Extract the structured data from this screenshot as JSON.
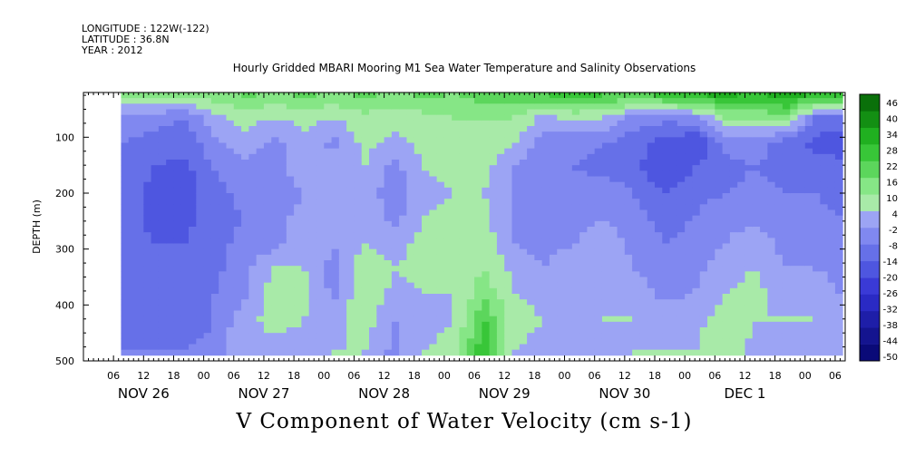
{
  "header": {
    "longitude": "LONGITUDE : 122W(-122)",
    "latitude": "LATITUDE : 36.8N",
    "year": "YEAR : 2012"
  },
  "title": "Hourly Gridded MBARI Mooring M1 Sea Water Temperature and Salinity Observations",
  "bottom_title": "V Component of Water Velocity (cm s-1)",
  "chart_data": {
    "type": "heatmap",
    "title": "Hourly Gridded MBARI Mooring M1 Sea Water Temperature and Salinity Observations",
    "variable": "V Component of Water Velocity (cm s-1)",
    "ylabel": "DEPTH (m)",
    "ylim": [
      500,
      20
    ],
    "y_reversed": true,
    "y_ticks": [
      100,
      200,
      300,
      400,
      500
    ],
    "x_hour_ticks": [
      "06",
      "12",
      "18",
      "00",
      "06",
      "12",
      "18",
      "00",
      "06",
      "12",
      "18",
      "00",
      "06",
      "12",
      "18",
      "00",
      "06",
      "12",
      "18",
      "00",
      "06",
      "12",
      "18",
      "00",
      "06"
    ],
    "x_day_labels": [
      "NOV 26",
      "NOV 27",
      "NOV 28",
      "NOV 29",
      "NOV 30",
      "DEC  1"
    ],
    "x_range_hours": [
      0,
      152
    ],
    "data_start_hour": 7.5,
    "data_end_hour": 151,
    "colorbar": {
      "levels": [
        -50,
        -44,
        -38,
        -32,
        -26,
        -20,
        -14,
        -8,
        -2,
        4,
        10,
        16,
        22,
        28,
        34,
        40,
        46
      ],
      "labels": [
        "46",
        "40",
        "34",
        "28",
        "22",
        "16",
        "10",
        "4",
        "-2",
        "-8",
        "-14",
        "-20",
        "-26",
        "-32",
        "-38",
        "-44",
        "-50"
      ]
    },
    "profiles": [
      {
        "hour": 8,
        "v": [
          12,
          -4,
          -8,
          -10,
          -10,
          -10,
          -10,
          -10,
          -10,
          -10,
          -8
        ]
      },
      {
        "hour": 14,
        "v": [
          16,
          -6,
          -10,
          -14,
          -16,
          -16,
          -14,
          -12,
          -12,
          -10,
          -8
        ]
      },
      {
        "hour": 20,
        "v": [
          14,
          -8,
          -12,
          -16,
          -18,
          -16,
          -14,
          -14,
          -12,
          -12,
          -8
        ]
      },
      {
        "hour": 26,
        "v": [
          14,
          2,
          -4,
          -8,
          -10,
          -12,
          -10,
          -10,
          -8,
          -8,
          -6
        ]
      },
      {
        "hour": 32,
        "v": [
          18,
          6,
          2,
          -4,
          -6,
          -8,
          -6,
          -4,
          -4,
          2,
          4
        ]
      },
      {
        "hour": 38,
        "v": [
          16,
          4,
          -4,
          -6,
          -8,
          -6,
          -4,
          4,
          8,
          6,
          2
        ]
      },
      {
        "hour": 44,
        "v": [
          18,
          6,
          2,
          4,
          -2,
          2,
          2,
          4,
          6,
          4,
          2
        ]
      },
      {
        "hour": 50,
        "v": [
          16,
          4,
          -4,
          2,
          4,
          4,
          -2,
          -4,
          -4,
          2,
          4
        ]
      },
      {
        "hour": 56,
        "v": [
          18,
          8,
          6,
          4,
          2,
          2,
          4,
          8,
          10,
          8,
          4
        ]
      },
      {
        "hour": 62,
        "v": [
          16,
          6,
          2,
          -4,
          -6,
          -4,
          2,
          4,
          2,
          -2,
          -4
        ]
      },
      {
        "hour": 68,
        "v": [
          18,
          8,
          6,
          4,
          2,
          4,
          6,
          6,
          4,
          2,
          4
        ]
      },
      {
        "hour": 74,
        "v": [
          16,
          10,
          8,
          6,
          4,
          6,
          8,
          6,
          4,
          4,
          6
        ]
      },
      {
        "hour": 80,
        "v": [
          20,
          10,
          8,
          6,
          4,
          6,
          8,
          10,
          14,
          22,
          28
        ]
      },
      {
        "hour": 86,
        "v": [
          20,
          10,
          4,
          -2,
          -2,
          -4,
          -2,
          2,
          4,
          6,
          4
        ]
      },
      {
        "hour": 92,
        "v": [
          24,
          2,
          -6,
          -8,
          -8,
          -6,
          -4,
          -2,
          2,
          4,
          2
        ]
      },
      {
        "hour": 98,
        "v": [
          26,
          6,
          -6,
          -8,
          -6,
          -4,
          -2,
          2,
          4,
          2,
          4
        ]
      },
      {
        "hour": 104,
        "v": [
          24,
          4,
          -8,
          -10,
          -4,
          -2,
          2,
          4,
          4,
          4,
          2
        ]
      },
      {
        "hour": 110,
        "v": [
          22,
          -4,
          -12,
          -12,
          -8,
          -6,
          -4,
          -2,
          2,
          4,
          4
        ]
      },
      {
        "hour": 116,
        "v": [
          28,
          -6,
          -16,
          -20,
          -14,
          -10,
          -8,
          -6,
          -4,
          2,
          4
        ]
      },
      {
        "hour": 122,
        "v": [
          30,
          -4,
          -20,
          -14,
          -10,
          -8,
          -6,
          -4,
          -2,
          2,
          4
        ]
      },
      {
        "hour": 128,
        "v": [
          32,
          10,
          -6,
          -10,
          -8,
          -4,
          -2,
          2,
          4,
          6,
          10
        ]
      },
      {
        "hour": 134,
        "v": [
          28,
          10,
          -4,
          -8,
          -6,
          -4,
          2,
          4,
          6,
          4,
          2
        ]
      },
      {
        "hour": 140,
        "v": [
          34,
          14,
          -12,
          -10,
          -8,
          -6,
          -4,
          -2,
          2,
          4,
          2
        ]
      },
      {
        "hour": 146,
        "v": [
          30,
          -8,
          -16,
          -10,
          -8,
          -6,
          -4,
          -2,
          2,
          4,
          4
        ]
      },
      {
        "hour": 151,
        "v": [
          30,
          -10,
          -18,
          -12,
          -10,
          -8,
          -6,
          -4,
          -2,
          2,
          2
        ]
      }
    ],
    "profile_depths": [
      20,
      65,
      110,
      155,
      200,
      245,
      290,
      335,
      380,
      425,
      485
    ]
  }
}
